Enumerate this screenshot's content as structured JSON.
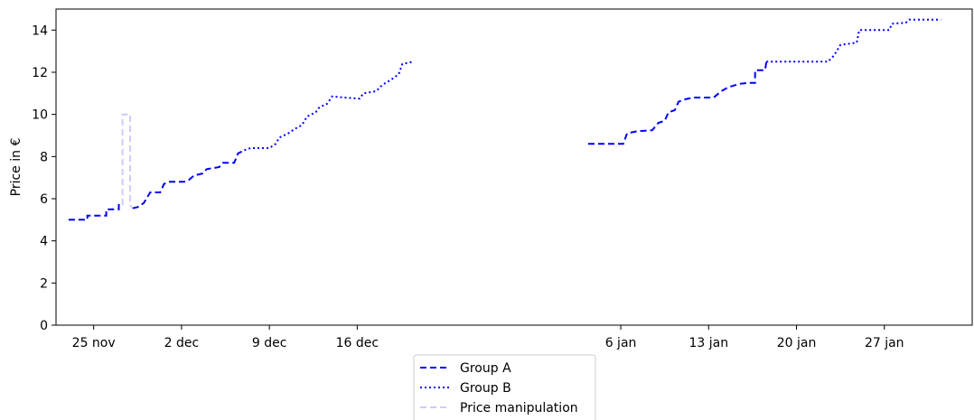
{
  "chart_data": {
    "type": "line",
    "title": "",
    "xlabel": "",
    "ylabel": "Price in €",
    "ylim": [
      0,
      15
    ],
    "xlim": [
      "2018-11-22",
      "2019-02-03"
    ],
    "yticks": [
      0,
      2,
      4,
      6,
      8,
      10,
      12,
      14
    ],
    "xticks": [
      {
        "date": "2018-11-25",
        "label": "25 nov"
      },
      {
        "date": "2018-12-02",
        "label": "2 dec"
      },
      {
        "date": "2018-12-09",
        "label": "9 dec"
      },
      {
        "date": "2018-12-16",
        "label": "16 dec"
      },
      {
        "date": "2019-01-06",
        "label": "6 jan"
      },
      {
        "date": "2019-01-13",
        "label": "13 jan"
      },
      {
        "date": "2019-01-20",
        "label": "20 jan"
      },
      {
        "date": "2019-01-27",
        "label": "27 jan"
      }
    ],
    "grid": false,
    "legend_position": "bottom-center",
    "series": [
      {
        "name": "Group A",
        "color": "#0000ff",
        "style": "dashed",
        "segments": [
          [
            [
              "2018-11-23",
              5.0
            ],
            [
              "2018-11-24.5",
              5.0
            ],
            [
              "2018-11-24.5",
              5.2
            ],
            [
              "2018-11-26",
              5.2
            ],
            [
              "2018-11-26",
              5.5
            ],
            [
              "2018-11-27",
              5.5
            ],
            [
              "2018-11-27",
              5.7
            ],
            [
              "2018-11-27.3",
              5.7
            ]
          ],
          [
            [
              "2018-11-28.1",
              5.55
            ],
            [
              "2018-11-28.5",
              5.6
            ],
            [
              "2018-11-29",
              5.8
            ],
            [
              "2018-11-29.5",
              6.3
            ],
            [
              "2018-11-30.3",
              6.3
            ],
            [
              "2018-11-30.6",
              6.7
            ],
            [
              "2018-12-01",
              6.8
            ],
            [
              "2018-12-02.2",
              6.8
            ],
            [
              "2018-12-02.6",
              6.9
            ],
            [
              "2018-12-03",
              7.1
            ],
            [
              "2018-12-03.7",
              7.2
            ],
            [
              "2018-12-04",
              7.4
            ],
            [
              "2018-12-05",
              7.5
            ],
            [
              "2018-12-05.3",
              7.7
            ],
            [
              "2018-12-06.2",
              7.7
            ],
            [
              "2018-12-06.5",
              8.15
            ],
            [
              "2018-12-07",
              8.3
            ]
          ],
          [
            [
              "2019-01-03.4",
              8.6
            ],
            [
              "2019-01-06.2",
              8.6
            ],
            [
              "2019-01-06.5",
              9.1
            ],
            [
              "2019-01-07.3",
              9.2
            ],
            [
              "2019-01-08.5",
              9.25
            ],
            [
              "2019-01-09",
              9.6
            ],
            [
              "2019-01-09.5",
              9.7
            ],
            [
              "2019-01-09.8",
              10.1
            ],
            [
              "2019-01-10.3",
              10.2
            ],
            [
              "2019-01-10.6",
              10.6
            ],
            [
              "2019-01-11",
              10.7
            ],
            [
              "2019-01-11.8",
              10.8
            ],
            [
              "2019-01-13.4",
              10.8
            ],
            [
              "2019-01-14",
              11.1
            ],
            [
              "2019-01-14.6",
              11.3
            ],
            [
              "2019-01-15.5",
              11.45
            ],
            [
              "2019-01-16.2",
              11.5
            ],
            [
              "2019-01-16.7",
              11.5
            ],
            [
              "2019-01-16.7",
              12.1
            ],
            [
              "2019-01-17.5",
              12.1
            ],
            [
              "2019-01-17.6",
              12.5
            ]
          ]
        ]
      },
      {
        "name": "Group B",
        "color": "#0000ff",
        "style": "dotted",
        "segments": [
          [
            [
              "2018-12-07",
              8.3
            ],
            [
              "2018-12-07.5",
              8.4
            ],
            [
              "2018-12-09",
              8.4
            ],
            [
              "2018-12-09.5",
              8.6
            ],
            [
              "2018-12-09.8",
              8.9
            ],
            [
              "2018-12-10.5",
              9.1
            ],
            [
              "2018-12-11",
              9.3
            ],
            [
              "2018-12-11.6",
              9.5
            ],
            [
              "2018-12-12",
              9.9
            ],
            [
              "2018-12-12.7",
              10.1
            ],
            [
              "2018-12-13",
              10.35
            ],
            [
              "2018-12-13.6",
              10.5
            ],
            [
              "2018-12-14",
              10.85
            ],
            [
              "2018-12-15",
              10.8
            ],
            [
              "2018-12-16.2",
              10.75
            ],
            [
              "2018-12-16.5",
              11.0
            ],
            [
              "2018-12-17.5",
              11.1
            ],
            [
              "2018-12-18",
              11.4
            ],
            [
              "2018-12-18.7",
              11.65
            ],
            [
              "2018-12-19.3",
              11.9
            ],
            [
              "2018-12-19.6",
              12.4
            ],
            [
              "2018-12-20.5",
              12.5
            ]
          ],
          [
            [
              "2019-01-17.6",
              12.5
            ],
            [
              "2019-01-22.5",
              12.5
            ],
            [
              "2019-01-23",
              12.8
            ],
            [
              "2019-01-23.5",
              13.3
            ],
            [
              "2019-01-24.8",
              13.4
            ],
            [
              "2019-01-25",
              14.0
            ],
            [
              "2019-01-27.4",
              14.0
            ],
            [
              "2019-01-27.6",
              14.3
            ],
            [
              "2019-01-28.7",
              14.35
            ],
            [
              "2019-01-29",
              14.5
            ],
            [
              "2019-01-31.5",
              14.5
            ]
          ]
        ]
      },
      {
        "name": "Price manipulation",
        "color": "#ccccff",
        "style": "dashed",
        "segments": [
          [
            [
              "2018-11-27.3",
              5.7
            ],
            [
              "2018-11-27.3",
              10.0
            ],
            [
              "2018-11-27.9",
              10.0
            ],
            [
              "2018-11-27.9",
              5.7
            ],
            [
              "2018-11-28.1",
              5.55
            ]
          ]
        ]
      }
    ]
  }
}
